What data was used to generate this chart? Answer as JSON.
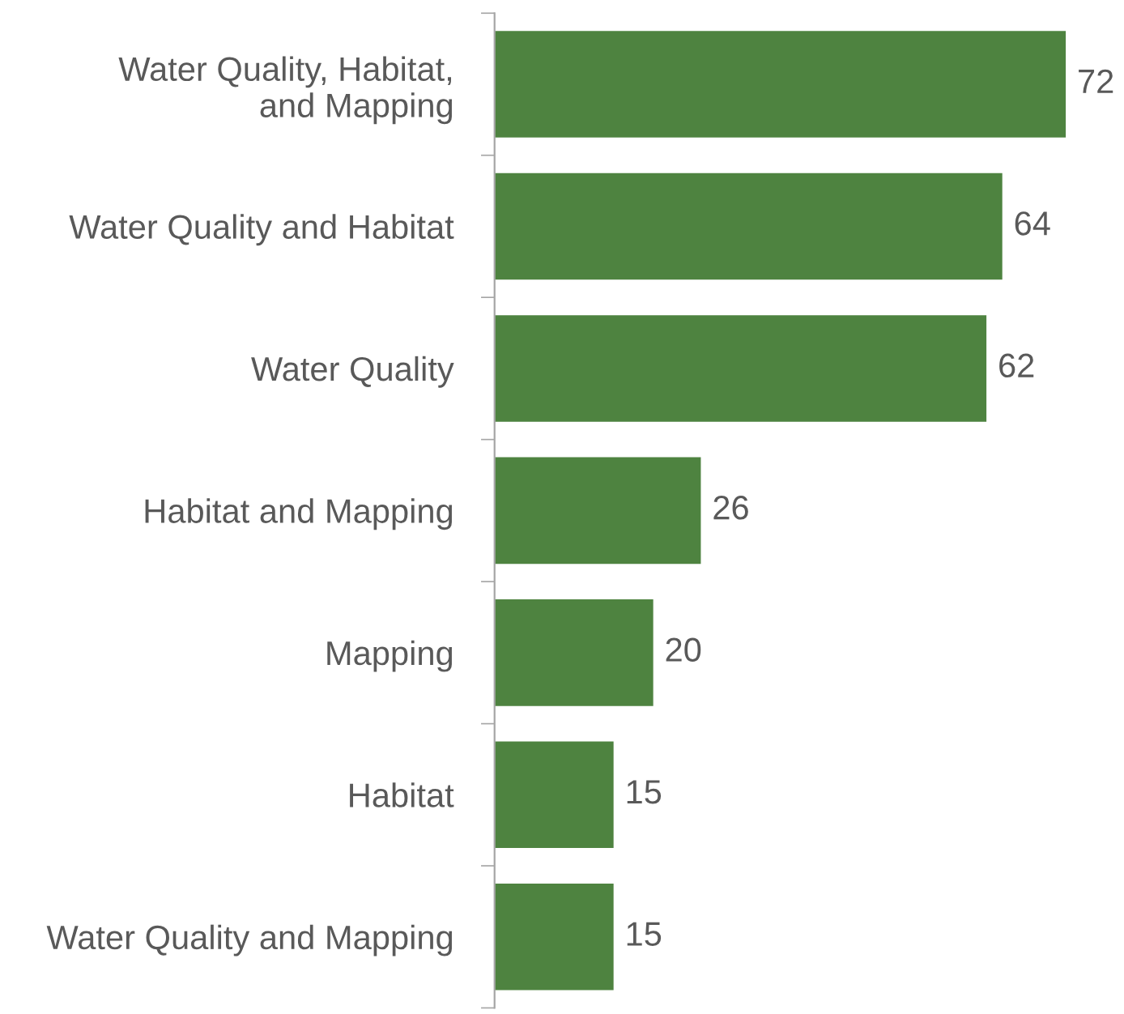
{
  "chart_data": {
    "type": "bar",
    "orientation": "horizontal",
    "categories": [
      "Water Quality, Habitat,\nand Mapping",
      "Water Quality and Habitat",
      "Water Quality",
      "Habitat and Mapping",
      "Mapping",
      "Habitat",
      "Water Quality and Mapping"
    ],
    "values": [
      72,
      64,
      62,
      26,
      20,
      15,
      15
    ],
    "color": "#4e8340",
    "tick_labels": "y",
    "data_labels": true,
    "grid": false,
    "legend": false
  }
}
